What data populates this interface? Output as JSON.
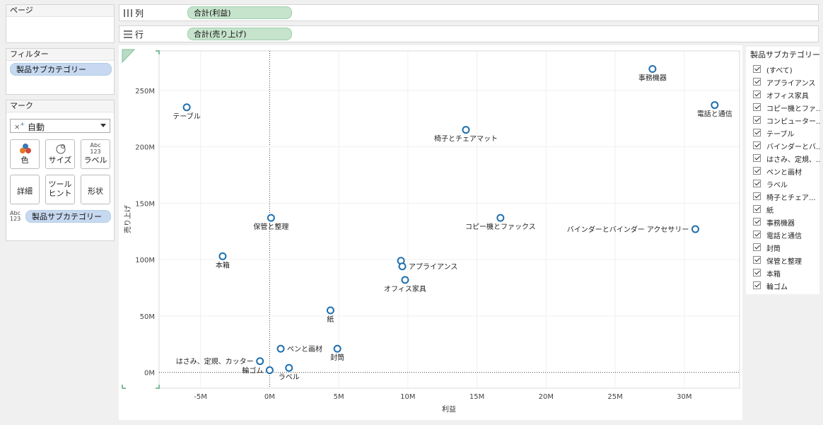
{
  "panels": {
    "pages": {
      "title": "ページ"
    },
    "filters": {
      "title": "フィルター",
      "pill": "製品サブカテゴリー"
    },
    "marks": {
      "title": "マーク",
      "type_label": "自動",
      "buttons": [
        {
          "label": "色",
          "icon": "color-icon"
        },
        {
          "label": "サイズ",
          "icon": "size-icon"
        },
        {
          "label": "ラベル",
          "icon": "label-icon",
          "glyph": "Abc\n123"
        },
        {
          "label": "詳細",
          "icon": ""
        },
        {
          "label": "ツール\nヒント",
          "icon": ""
        },
        {
          "label": "形状",
          "icon": ""
        }
      ],
      "label_pill": "製品サブカテゴリー",
      "label_pill_glyph": "Abc\n123"
    }
  },
  "shelves": {
    "columns": {
      "label": "列",
      "pill": "合計(利益)"
    },
    "rows": {
      "label": "行",
      "pill": "合計(売り上げ)"
    }
  },
  "legend": {
    "title": "製品サブカテゴリー",
    "items": [
      "(すべて)",
      "アプライアンス",
      "オフィス家具",
      "コピー機とファ...",
      "コンピューター...",
      "テーブル",
      "バインダーとバ...",
      "はさみ、定規、...",
      "ペンと画材",
      "ラベル",
      "椅子とチェア...",
      "紙",
      "事務機器",
      "電話と通信",
      "封筒",
      "保管と整理",
      "本箱",
      "輪ゴム"
    ]
  },
  "colors": {
    "mark": "#1f6fae",
    "accent_pill": "#c6d9f0",
    "shelf_pill": "#c6e3cc"
  },
  "chart_data": {
    "type": "scatter",
    "xlabel": "利益",
    "ylabel": "売り上げ",
    "xlim": [
      -8,
      34
    ],
    "ylim": [
      -14,
      285
    ],
    "x_ticks": [
      -5,
      0,
      5,
      10,
      15,
      20,
      25,
      30
    ],
    "x_tick_labels": [
      "-5M",
      "0M",
      "5M",
      "10M",
      "15M",
      "20M",
      "25M",
      "30M"
    ],
    "y_ticks": [
      0,
      50,
      100,
      150,
      200,
      250
    ],
    "y_tick_labels": [
      "0M",
      "50M",
      "100M",
      "150M",
      "200M",
      "250M"
    ],
    "grid": true,
    "points": [
      {
        "label": "テーブル",
        "x": -6.0,
        "y": 235,
        "pos": "below"
      },
      {
        "label": "事務機器",
        "x": 27.7,
        "y": 269,
        "pos": "below"
      },
      {
        "label": "電話と通信",
        "x": 32.2,
        "y": 237,
        "pos": "below"
      },
      {
        "label": "椅子とチェアマット",
        "x": 14.2,
        "y": 215,
        "pos": "below"
      },
      {
        "label": "保管と整理",
        "x": 0.1,
        "y": 137,
        "pos": "below"
      },
      {
        "label": "コピー機とファックス",
        "x": 16.7,
        "y": 137,
        "pos": "below"
      },
      {
        "label": "バインダーとバインダー アクセサリー",
        "x": 30.8,
        "y": 127,
        "pos": "left"
      },
      {
        "label": "本箱",
        "x": -3.4,
        "y": 103,
        "pos": "below"
      },
      {
        "label": "",
        "x": 9.5,
        "y": 99,
        "pos": "none"
      },
      {
        "label": "アプライアンス",
        "x": 9.6,
        "y": 94,
        "pos": "right"
      },
      {
        "label": "オフィス家具",
        "x": 9.8,
        "y": 82,
        "pos": "below"
      },
      {
        "label": "紙",
        "x": 4.4,
        "y": 55,
        "pos": "below"
      },
      {
        "label": "ペンと画材",
        "x": 0.8,
        "y": 21,
        "pos": "right"
      },
      {
        "label": "封筒",
        "x": 4.9,
        "y": 21,
        "pos": "below"
      },
      {
        "label": "はさみ、定規、カッター",
        "x": -0.7,
        "y": 10,
        "pos": "left"
      },
      {
        "label": "輪ゴム",
        "x": 0.0,
        "y": 2,
        "pos": "left"
      },
      {
        "label": "ラベル",
        "x": 1.4,
        "y": 4,
        "pos": "below"
      }
    ]
  }
}
